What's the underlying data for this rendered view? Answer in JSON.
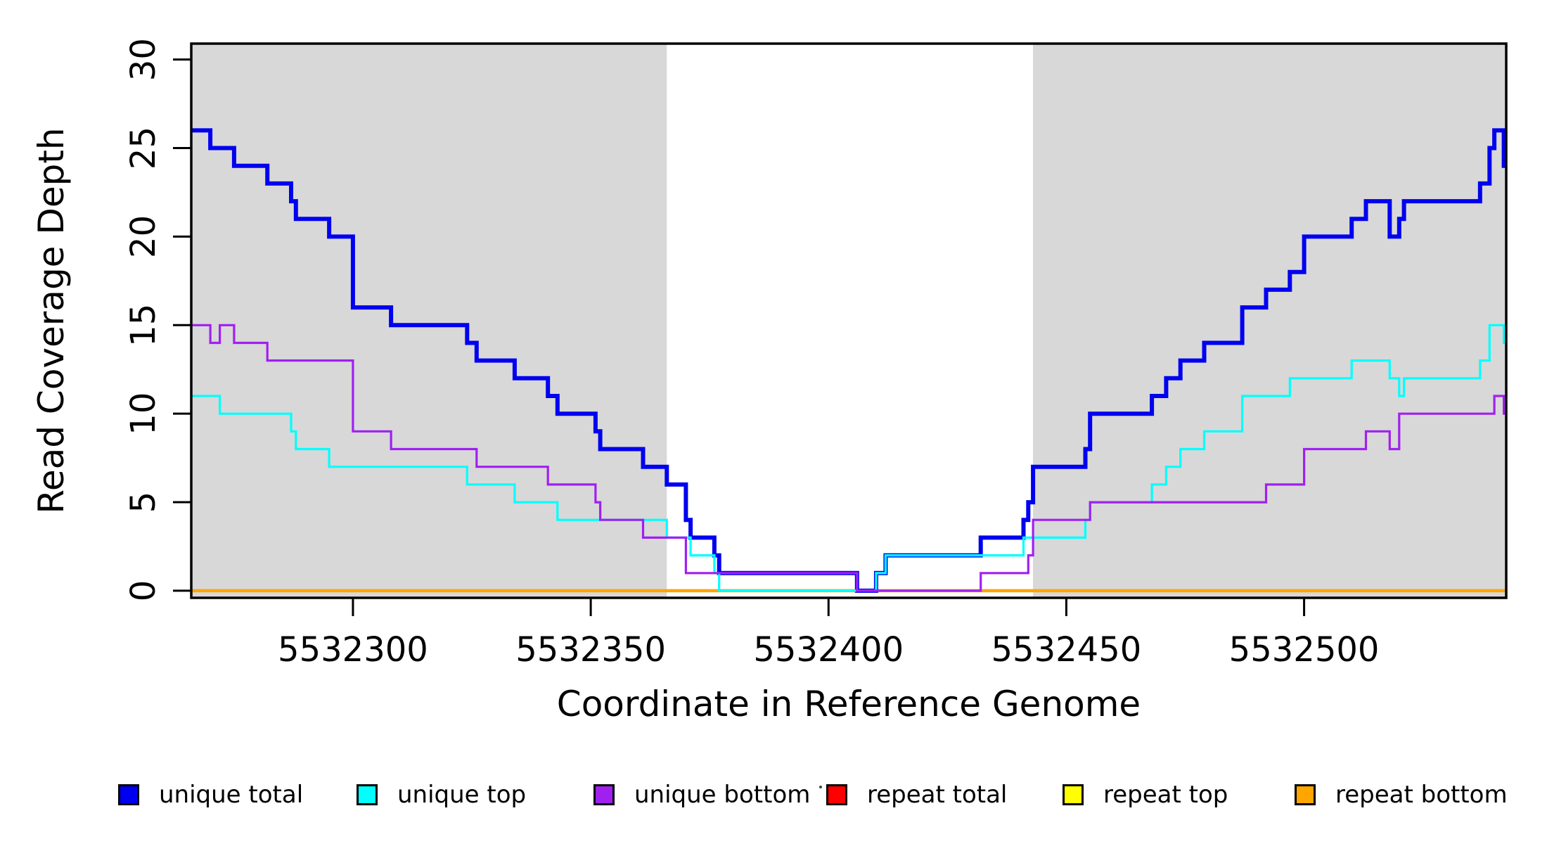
{
  "chart_data": {
    "type": "line",
    "subtype": "step",
    "title": "",
    "xlabel": "Coordinate in Reference Genome",
    "ylabel": "Read Coverage Depth",
    "xlim": [
      5532266,
      5532542.5
    ],
    "ylim": [
      -0.4,
      30.9
    ],
    "x_ticks": [
      5532300,
      5532350,
      5532400,
      5532450,
      5532500
    ],
    "y_ticks": [
      0,
      5,
      10,
      15,
      20,
      25,
      30
    ],
    "grid": false,
    "legend_position": "bottom",
    "background_color": "#ffffff",
    "shaded_regions": [
      {
        "x_from": 5532266,
        "x_to": 5532366,
        "color": "#D8D8D8"
      },
      {
        "x_from": 5532443,
        "x_to": 5532542.5,
        "color": "#D8D8D8"
      }
    ],
    "series": [
      {
        "name": "unique total",
        "color": "#0000F0",
        "line_width": 6,
        "points": [
          [
            5532266,
            26
          ],
          [
            5532270,
            25
          ],
          [
            5532275,
            24
          ],
          [
            5532282,
            23
          ],
          [
            5532287,
            22
          ],
          [
            5532288,
            21
          ],
          [
            5532295,
            20
          ],
          [
            5532300,
            16
          ],
          [
            5532308,
            15
          ],
          [
            5532324,
            14
          ],
          [
            5532326,
            13
          ],
          [
            5532334,
            12
          ],
          [
            5532341,
            11
          ],
          [
            5532343,
            10
          ],
          [
            5532351,
            9
          ],
          [
            5532352,
            8
          ],
          [
            5532361,
            7
          ],
          [
            5532366,
            6
          ],
          [
            5532370,
            4
          ],
          [
            5532371,
            3
          ],
          [
            5532376,
            2
          ],
          [
            5532377,
            1
          ],
          [
            5532406,
            0
          ],
          [
            5532410,
            1
          ],
          [
            5532412,
            2
          ],
          [
            5532432,
            3
          ],
          [
            5532441,
            4
          ],
          [
            5532442,
            5
          ],
          [
            5532443,
            7
          ],
          [
            5532454,
            8
          ],
          [
            5532455,
            10
          ],
          [
            5532468,
            11
          ],
          [
            5532471,
            12
          ],
          [
            5532474,
            13
          ],
          [
            5532479,
            14
          ],
          [
            5532487,
            16
          ],
          [
            5532492,
            17
          ],
          [
            5532497,
            18
          ],
          [
            5532500,
            20
          ],
          [
            5532510,
            21
          ],
          [
            5532513,
            22
          ],
          [
            5532518,
            20
          ],
          [
            5532520,
            21
          ],
          [
            5532521,
            22
          ],
          [
            5532537,
            23
          ],
          [
            5532539,
            25
          ],
          [
            5532540,
            26
          ],
          [
            5532542,
            24
          ]
        ]
      },
      {
        "name": "unique top",
        "color": "#00FFFF",
        "line_width": 3.2,
        "points": [
          [
            5532266,
            11
          ],
          [
            5532272,
            10
          ],
          [
            5532287,
            9
          ],
          [
            5532288,
            8
          ],
          [
            5532295,
            7
          ],
          [
            5532324,
            6
          ],
          [
            5532334,
            5
          ],
          [
            5532343,
            4
          ],
          [
            5532366,
            3
          ],
          [
            5532371,
            2
          ],
          [
            5532376,
            1
          ],
          [
            5532377,
            0
          ],
          [
            5532410,
            1
          ],
          [
            5532412,
            2
          ],
          [
            5532441,
            3
          ],
          [
            5532454,
            4
          ],
          [
            5532455,
            5
          ],
          [
            5532468,
            6
          ],
          [
            5532471,
            7
          ],
          [
            5532474,
            8
          ],
          [
            5532479,
            9
          ],
          [
            5532487,
            11
          ],
          [
            5532497,
            12
          ],
          [
            5532510,
            13
          ],
          [
            5532518,
            12
          ],
          [
            5532520,
            11
          ],
          [
            5532521,
            12
          ],
          [
            5532537,
            13
          ],
          [
            5532539,
            15
          ],
          [
            5532542,
            14
          ]
        ]
      },
      {
        "name": "unique bottom",
        "color": "#A020F0",
        "line_width": 3.2,
        "points": [
          [
            5532266,
            15
          ],
          [
            5532270,
            14
          ],
          [
            5532272,
            15
          ],
          [
            5532275,
            14
          ],
          [
            5532282,
            13
          ],
          [
            5532300,
            9
          ],
          [
            5532308,
            8
          ],
          [
            5532326,
            7
          ],
          [
            5532341,
            6
          ],
          [
            5532351,
            5
          ],
          [
            5532352,
            4
          ],
          [
            5532361,
            3
          ],
          [
            5532370,
            1
          ],
          [
            5532406,
            0
          ],
          [
            5532432,
            1
          ],
          [
            5532442,
            2
          ],
          [
            5532443,
            4
          ],
          [
            5532455,
            5
          ],
          [
            5532492,
            6
          ],
          [
            5532500,
            8
          ],
          [
            5532513,
            9
          ],
          [
            5532518,
            8
          ],
          [
            5532520,
            10
          ],
          [
            5532540,
            11
          ],
          [
            5532542,
            10
          ]
        ]
      },
      {
        "name": "repeat total",
        "color": "#FF0000",
        "line_width": 3.2,
        "points": [
          [
            5532266,
            0
          ]
        ]
      },
      {
        "name": "repeat top",
        "color": "#FFFF00",
        "line_width": 3.2,
        "points": [
          [
            5532266,
            0
          ]
        ]
      },
      {
        "name": "repeat bottom",
        "color": "#FFA500",
        "line_width": 4.5,
        "points": [
          [
            5532266,
            0
          ]
        ]
      }
    ]
  },
  "axes": {
    "x_label": "Coordinate in Reference Genome",
    "y_label": "Read Coverage Depth",
    "x_tick_labels": [
      "5532300",
      "5532350",
      "5532400",
      "5532450",
      "5532500"
    ],
    "y_tick_labels": [
      "0",
      "5",
      "10",
      "15",
      "20",
      "25",
      "30"
    ]
  },
  "legend": {
    "items": [
      {
        "label": "unique total",
        "color": "#0000F0"
      },
      {
        "label": "unique top",
        "color": "#00FFFF"
      },
      {
        "label": "unique bottom",
        "color": "#A020F0"
      },
      {
        "label": "repeat total",
        "color": "#FF0000"
      },
      {
        "label": "repeat top",
        "color": "#FFFF00"
      },
      {
        "label": "repeat bottom",
        "color": "#FFA500"
      }
    ]
  }
}
